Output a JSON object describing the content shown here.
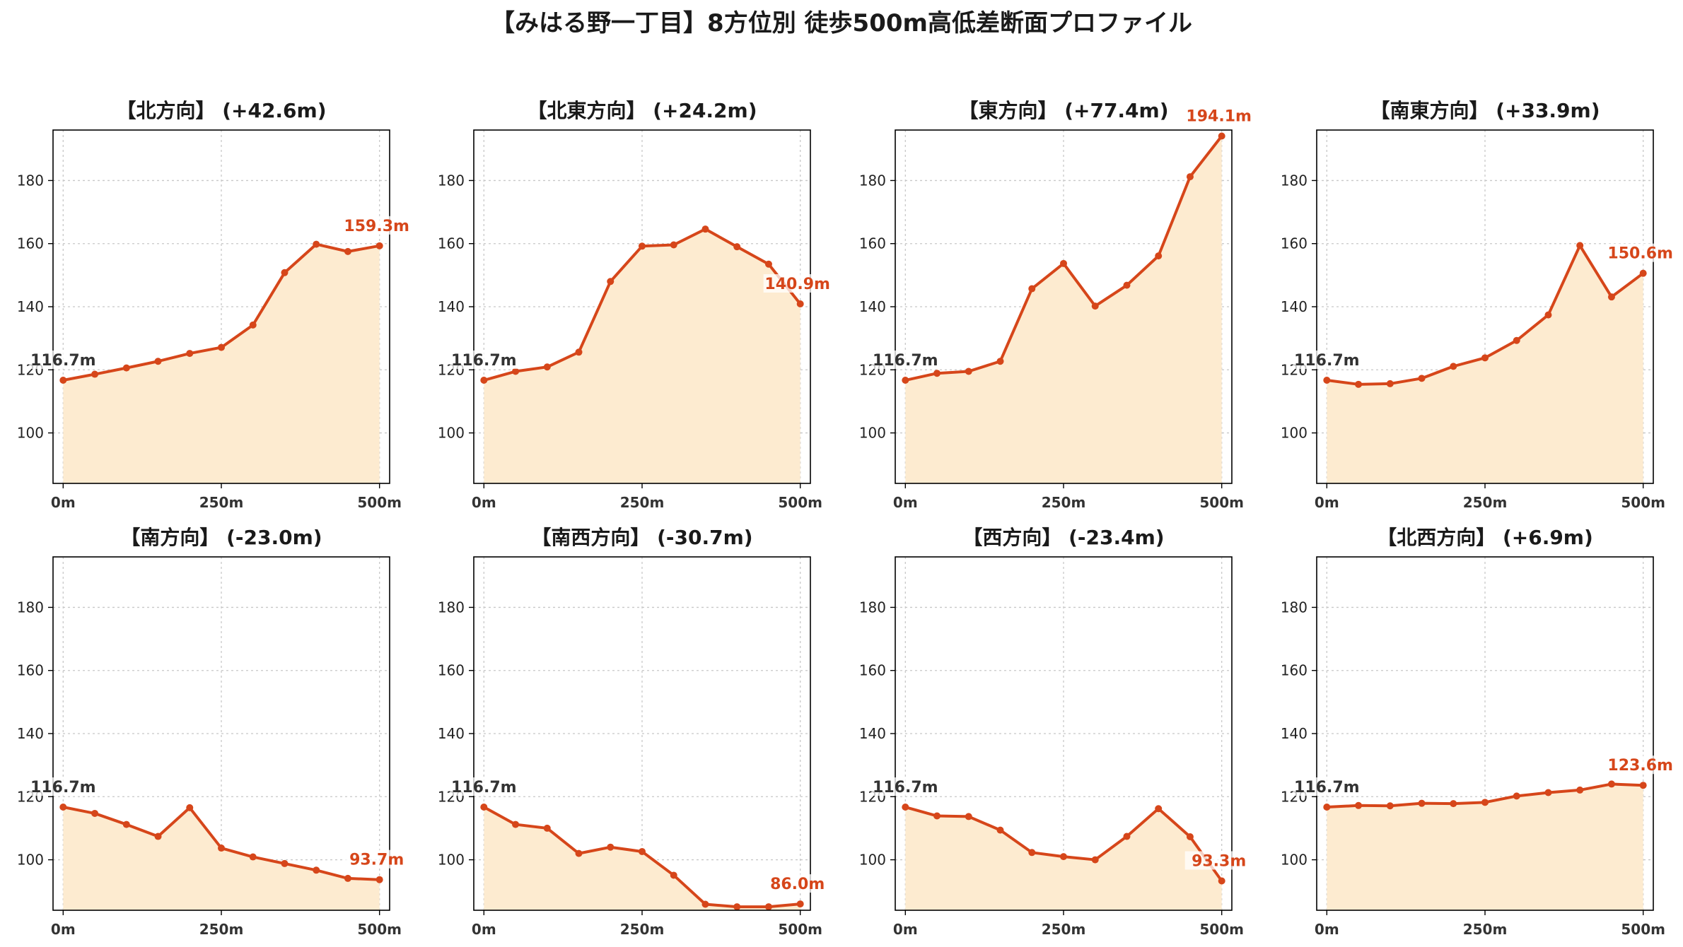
{
  "title": "【みはる野一丁目】8方位別 徒歩500m高低差断面プロファイル",
  "colors": {
    "line": "#d6461a",
    "fill": "#fdebd0",
    "grid": "#c8c8c8"
  },
  "chart_data": {
    "type": "area",
    "x": [
      0,
      50,
      100,
      150,
      200,
      250,
      300,
      350,
      400,
      450,
      500
    ],
    "x_ticks": [
      0,
      250,
      500
    ],
    "x_tick_labels": [
      "0m",
      "250m",
      "500m"
    ],
    "xlim": [
      -16,
      516
    ],
    "ylim": [
      84,
      196
    ],
    "y_ticks": [
      100,
      120,
      140,
      160,
      180
    ],
    "grid": true,
    "panels": [
      {
        "title": "【北方向】 (+42.6m)",
        "start_label": "116.7m",
        "end_label": "159.3m",
        "values": [
          116.7,
          118.6,
          120.6,
          122.7,
          125.2,
          127.1,
          134.2,
          150.8,
          159.8,
          157.5,
          159.3
        ]
      },
      {
        "title": "【北東方向】 (+24.2m)",
        "start_label": "116.7m",
        "end_label": "140.9m",
        "values": [
          116.7,
          119.5,
          120.9,
          125.6,
          148.0,
          159.2,
          159.6,
          164.6,
          159.0,
          153.5,
          140.9
        ]
      },
      {
        "title": "【東方向】 (+77.4m)",
        "start_label": "116.7m",
        "end_label": "194.1m",
        "values": [
          116.7,
          118.9,
          119.5,
          122.7,
          145.7,
          153.7,
          140.2,
          146.8,
          156.1,
          181.2,
          194.1
        ]
      },
      {
        "title": "【南東方向】 (+33.9m)",
        "start_label": "116.7m",
        "end_label": "150.6m",
        "values": [
          116.7,
          115.4,
          115.6,
          117.3,
          121.1,
          123.8,
          129.3,
          137.4,
          159.4,
          143.1,
          150.6
        ]
      },
      {
        "title": "【南方向】 (-23.0m)",
        "start_label": "116.7m",
        "end_label": "93.7m",
        "values": [
          116.7,
          114.7,
          111.2,
          107.4,
          116.5,
          103.7,
          100.9,
          98.8,
          96.7,
          94.1,
          93.7
        ]
      },
      {
        "title": "【南西方向】 (-30.7m)",
        "start_label": "116.7m",
        "end_label": "86.0m",
        "values": [
          116.7,
          111.2,
          110.0,
          102.0,
          104.0,
          102.6,
          95.1,
          85.9,
          85.1,
          85.1,
          86.0
        ]
      },
      {
        "title": "【西方向】 (-23.4m)",
        "start_label": "116.7m",
        "end_label": "93.3m",
        "values": [
          116.7,
          113.9,
          113.7,
          109.4,
          102.3,
          101.0,
          100.0,
          107.4,
          116.2,
          107.3,
          93.3
        ]
      },
      {
        "title": "【北西方向】 (+6.9m)",
        "start_label": "116.7m",
        "end_label": "123.6m",
        "values": [
          116.7,
          117.2,
          117.1,
          117.9,
          117.8,
          118.2,
          120.2,
          121.3,
          122.1,
          124.0,
          123.6
        ]
      }
    ]
  }
}
